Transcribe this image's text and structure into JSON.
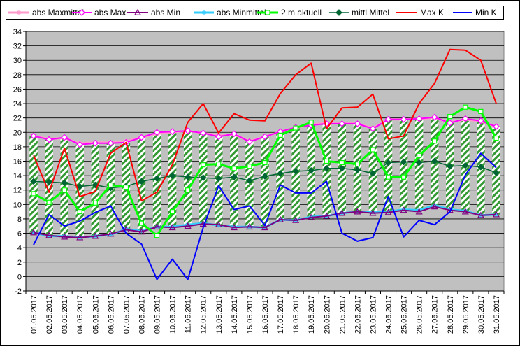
{
  "chart_data": {
    "type": "line",
    "title": "",
    "xlabel": "",
    "ylabel": "",
    "ylim": [
      -2,
      34
    ],
    "yticks": [
      -2,
      0,
      2,
      4,
      6,
      8,
      10,
      12,
      14,
      16,
      18,
      20,
      22,
      24,
      26,
      28,
      30,
      32,
      34
    ],
    "grid": true,
    "legend_position": "top",
    "plot_background": "#c0c0c0",
    "range_band": {
      "from_series": "abs Max",
      "to_series": "abs Min",
      "style": "green diagonal hatch with white",
      "color": "#339933"
    },
    "categories": [
      "01.05.2017",
      "02.05.2017",
      "03.05.2017",
      "04.05.2017",
      "05.05.2017",
      "06.05.2017",
      "07.05.2017",
      "08.05.2017",
      "09.05.2017",
      "10.05.2017",
      "11.05.2017",
      "12.05.2017",
      "13.05.2017",
      "14.05.2017",
      "15.05.2017",
      "16.05.2017",
      "17.05.2017",
      "18.05.2017",
      "19.05.2017",
      "20.05.2017",
      "21.05.2017",
      "22.05.2017",
      "23.05.2017",
      "24.05.2017",
      "25.05.2017",
      "26.05.2017",
      "27.05.2017",
      "28.05.2017",
      "29.05.2017",
      "30.05.2017",
      "31.05.2017"
    ],
    "series": [
      {
        "name": "abs Maxmittel",
        "color": "#ff99cc",
        "marker": "asterisk",
        "values": [
          19.5,
          19.1,
          19.2,
          18.5,
          18.6,
          18.6,
          18.8,
          19.3,
          19.8,
          20.0,
          20.2,
          19.9,
          19.6,
          19.7,
          18.8,
          19.4,
          20.1,
          20.6,
          21.1,
          21.3,
          21.3,
          21.2,
          20.6,
          21.8,
          21.8,
          21.9,
          22.0,
          21.4,
          21.8,
          21.5,
          20.8
        ]
      },
      {
        "name": "abs Max",
        "color": "#ff00ff",
        "marker": "diamond-open",
        "values": [
          19.5,
          19.0,
          19.3,
          18.3,
          18.5,
          18.5,
          18.6,
          19.3,
          20.0,
          20.1,
          20.2,
          19.9,
          19.4,
          19.8,
          18.7,
          19.4,
          20.1,
          20.7,
          21.0,
          21.2,
          21.2,
          21.2,
          20.5,
          21.8,
          21.8,
          21.9,
          22.1,
          21.3,
          21.9,
          21.6,
          20.8
        ]
      },
      {
        "name": "abs Min",
        "color": "#800080",
        "marker": "triangle-open",
        "values": [
          6.1,
          5.7,
          5.5,
          5.4,
          5.6,
          5.9,
          6.5,
          6.2,
          6.9,
          6.8,
          7.0,
          7.3,
          7.2,
          6.8,
          6.9,
          6.8,
          7.9,
          7.8,
          8.2,
          8.4,
          8.8,
          9.0,
          8.8,
          8.9,
          9.2,
          9.0,
          9.7,
          9.2,
          9.0,
          8.5,
          8.6
        ]
      },
      {
        "name": "abs Minmittel",
        "color": "#33ccff",
        "marker": "asterisk",
        "values": [
          6.1,
          5.6,
          5.6,
          5.4,
          5.6,
          5.8,
          6.6,
          6.3,
          6.9,
          6.9,
          7.2,
          7.4,
          7.1,
          6.9,
          6.9,
          6.8,
          7.9,
          7.8,
          8.3,
          8.4,
          8.8,
          9.0,
          8.9,
          9.0,
          9.3,
          9.2,
          9.9,
          9.3,
          9.1,
          8.5,
          8.6
        ]
      },
      {
        "name": "2 m aktuell",
        "color": "#00ff00",
        "marker": "square-open",
        "values": [
          11.5,
          10.3,
          12.0,
          9.0,
          10.2,
          12.7,
          12.4,
          7.4,
          5.7,
          9.0,
          12.0,
          15.5,
          15.6,
          15.0,
          15.3,
          15.8,
          19.6,
          20.6,
          21.4,
          16.0,
          15.8,
          15.6,
          17.6,
          13.8,
          13.8,
          16.8,
          18.8,
          22.2,
          23.5,
          22.9,
          19.2
        ]
      },
      {
        "name": "mittl Mittel",
        "color": "#006633",
        "marker": "diamond-filled",
        "values": [
          13.2,
          13.1,
          13.0,
          12.5,
          12.7,
          12.3,
          12.5,
          13.2,
          13.6,
          14.0,
          13.8,
          13.7,
          13.6,
          13.8,
          13.3,
          13.9,
          14.3,
          14.6,
          14.7,
          15.0,
          15.0,
          14.8,
          14.3,
          15.8,
          15.9,
          15.8,
          16.0,
          15.3,
          15.4,
          15.2,
          14.4
        ]
      },
      {
        "name": "Max K",
        "color": "#ff0000",
        "marker": "none",
        "values": [
          16.8,
          11.7,
          17.8,
          11.1,
          11.8,
          17.1,
          18.6,
          10.5,
          11.7,
          15.5,
          21.4,
          24.0,
          19.9,
          22.6,
          21.7,
          21.6,
          25.4,
          28.0,
          29.6,
          20.5,
          23.4,
          23.5,
          25.3,
          19.1,
          19.5,
          24.0,
          26.8,
          31.5,
          31.4,
          30.0,
          24.0
        ]
      },
      {
        "name": "Min K",
        "color": "#0000ff",
        "marker": "none",
        "values": [
          4.4,
          8.6,
          7.0,
          7.7,
          8.9,
          9.8,
          6.0,
          4.5,
          -0.4,
          2.4,
          -0.4,
          6.8,
          12.6,
          9.3,
          9.8,
          7.1,
          12.7,
          11.6,
          11.6,
          13.2,
          6.0,
          4.9,
          5.4,
          11.1,
          5.5,
          7.8,
          7.2,
          9.0,
          14.1,
          17.1,
          15.1
        ]
      }
    ]
  }
}
